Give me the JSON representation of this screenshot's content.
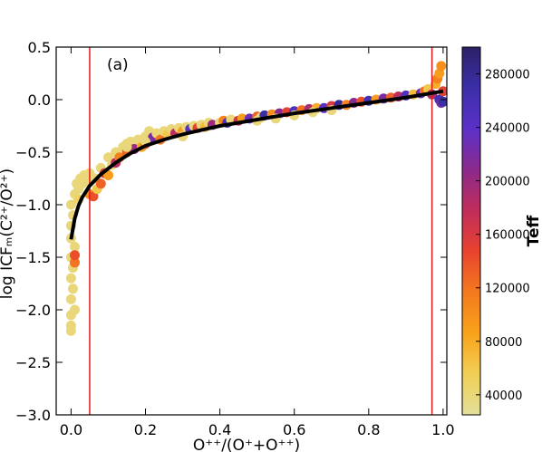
{
  "chart_data": {
    "type": "scatter",
    "panel_label": "(a)",
    "xlabel": "O⁺⁺/(O⁺+O⁺⁺)",
    "ylabel": "log ICFₘ(C²⁺/O²⁺)",
    "xlim": [
      -0.04,
      1.01
    ],
    "ylim": [
      -3.0,
      0.5
    ],
    "x_ticks": [
      "0.0",
      "0.2",
      "0.4",
      "0.6",
      "0.8",
      "1.0"
    ],
    "x_tick_values": [
      0.0,
      0.2,
      0.4,
      0.6,
      0.8,
      1.0
    ],
    "y_ticks": [
      "0.5",
      "0.0",
      "−0.5",
      "−1.0",
      "−1.5",
      "−2.0",
      "−2.5",
      "−3.0"
    ],
    "y_tick_values": [
      0.5,
      0.0,
      -0.5,
      -1.0,
      -1.5,
      -2.0,
      -2.5,
      -3.0
    ],
    "vertical_lines": [
      0.05,
      0.97
    ],
    "vline_color": "#e31a1c",
    "fit_curve": {
      "color": "#000000",
      "x": [
        0.0,
        0.01,
        0.02,
        0.03,
        0.05,
        0.08,
        0.12,
        0.16,
        0.2,
        0.25,
        0.3,
        0.35,
        0.4,
        0.5,
        0.6,
        0.7,
        0.8,
        0.9,
        1.0
      ],
      "y": [
        -1.33,
        -1.13,
        -1.01,
        -0.93,
        -0.82,
        -0.71,
        -0.6,
        -0.51,
        -0.44,
        -0.38,
        -0.33,
        -0.29,
        -0.25,
        -0.19,
        -0.13,
        -0.08,
        -0.03,
        0.02,
        0.08
      ]
    },
    "colorbar": {
      "label": "Teff",
      "min": 25000,
      "max": 300000,
      "ticks": [
        "280000",
        "240000",
        "200000",
        "160000",
        "120000",
        "80000",
        "40000"
      ],
      "tick_values": [
        280000,
        240000,
        200000,
        160000,
        120000,
        80000,
        40000
      ],
      "colormap": [
        "#e2df9a",
        "#f1cf56",
        "#f9a21a",
        "#f37a1f",
        "#e9432f",
        "#c12d5b",
        "#8b2a8c",
        "#5c30c8",
        "#3b2fa8",
        "#2c2068"
      ]
    },
    "points": [
      [
        0.0,
        -1.32,
        40000
      ],
      [
        0.0,
        -1.5,
        40000
      ],
      [
        0.0,
        -1.7,
        40000
      ],
      [
        0.0,
        -1.9,
        40000
      ],
      [
        0.0,
        -2.05,
        40000
      ],
      [
        0.0,
        -2.15,
        40000
      ],
      [
        0.0,
        -2.2,
        40000
      ],
      [
        0.0,
        -1.2,
        40000
      ],
      [
        0.0,
        -1.0,
        40000
      ],
      [
        0.005,
        -1.1,
        40000
      ],
      [
        0.005,
        -1.6,
        40000
      ],
      [
        0.005,
        -1.8,
        40000
      ],
      [
        0.01,
        -0.9,
        40000
      ],
      [
        0.01,
        -1.4,
        40000
      ],
      [
        0.01,
        -2.0,
        40000
      ],
      [
        0.01,
        -1.55,
        120000
      ],
      [
        0.01,
        -1.48,
        140000
      ],
      [
        0.015,
        -0.8,
        40000
      ],
      [
        0.02,
        -0.85,
        40000
      ],
      [
        0.02,
        -0.95,
        50000
      ],
      [
        0.025,
        -0.75,
        40000
      ],
      [
        0.03,
        -0.8,
        40000
      ],
      [
        0.035,
        -0.72,
        40000
      ],
      [
        0.04,
        -0.78,
        40000
      ],
      [
        0.05,
        -0.7,
        40000
      ],
      [
        0.05,
        -0.9,
        100000
      ],
      [
        0.06,
        -0.92,
        140000
      ],
      [
        0.065,
        -0.75,
        40000
      ],
      [
        0.07,
        -0.85,
        60000
      ],
      [
        0.08,
        -0.65,
        40000
      ],
      [
        0.08,
        -0.8,
        130000
      ],
      [
        0.09,
        -0.7,
        160000
      ],
      [
        0.1,
        -0.72,
        90000
      ],
      [
        0.1,
        -0.55,
        40000
      ],
      [
        0.11,
        -0.62,
        40000
      ],
      [
        0.12,
        -0.5,
        40000
      ],
      [
        0.12,
        -0.6,
        180000
      ],
      [
        0.13,
        -0.55,
        110000
      ],
      [
        0.14,
        -0.45,
        40000
      ],
      [
        0.15,
        -0.5,
        130000
      ],
      [
        0.15,
        -0.42,
        40000
      ],
      [
        0.16,
        -0.4,
        40000
      ],
      [
        0.17,
        -0.47,
        200000
      ],
      [
        0.18,
        -0.38,
        40000
      ],
      [
        0.19,
        -0.45,
        80000
      ],
      [
        0.2,
        -0.35,
        40000
      ],
      [
        0.2,
        -0.42,
        140000
      ],
      [
        0.21,
        -0.3,
        40000
      ],
      [
        0.22,
        -0.36,
        220000
      ],
      [
        0.23,
        -0.32,
        40000
      ],
      [
        0.24,
        -0.38,
        120000
      ],
      [
        0.25,
        -0.3,
        40000
      ],
      [
        0.26,
        -0.33,
        60000
      ],
      [
        0.27,
        -0.28,
        40000
      ],
      [
        0.28,
        -0.32,
        180000
      ],
      [
        0.29,
        -0.27,
        40000
      ],
      [
        0.3,
        -0.3,
        90000
      ],
      [
        0.31,
        -0.26,
        40000
      ],
      [
        0.32,
        -0.28,
        240000
      ],
      [
        0.33,
        -0.25,
        40000
      ],
      [
        0.34,
        -0.27,
        150000
      ],
      [
        0.35,
        -0.24,
        40000
      ],
      [
        0.36,
        -0.26,
        70000
      ],
      [
        0.37,
        -0.22,
        40000
      ],
      [
        0.38,
        -0.24,
        200000
      ],
      [
        0.4,
        -0.22,
        40000
      ],
      [
        0.41,
        -0.2,
        110000
      ],
      [
        0.42,
        -0.22,
        260000
      ],
      [
        0.43,
        -0.19,
        40000
      ],
      [
        0.45,
        -0.2,
        170000
      ],
      [
        0.46,
        -0.18,
        90000
      ],
      [
        0.48,
        -0.18,
        230000
      ],
      [
        0.5,
        -0.16,
        130000
      ],
      [
        0.51,
        -0.17,
        40000
      ],
      [
        0.52,
        -0.15,
        270000
      ],
      [
        0.54,
        -0.14,
        100000
      ],
      [
        0.56,
        -0.13,
        210000
      ],
      [
        0.58,
        -0.12,
        150000
      ],
      [
        0.6,
        -0.11,
        250000
      ],
      [
        0.62,
        -0.1,
        120000
      ],
      [
        0.64,
        -0.09,
        190000
      ],
      [
        0.66,
        -0.08,
        80000
      ],
      [
        0.68,
        -0.08,
        240000
      ],
      [
        0.7,
        -0.06,
        160000
      ],
      [
        0.72,
        -0.05,
        280000
      ],
      [
        0.74,
        -0.05,
        110000
      ],
      [
        0.76,
        -0.03,
        210000
      ],
      [
        0.78,
        -0.02,
        140000
      ],
      [
        0.8,
        -0.01,
        260000
      ],
      [
        0.82,
        0.0,
        90000
      ],
      [
        0.84,
        0.01,
        220000
      ],
      [
        0.86,
        0.02,
        130000
      ],
      [
        0.88,
        0.03,
        180000
      ],
      [
        0.9,
        0.04,
        250000
      ],
      [
        0.92,
        0.05,
        70000
      ],
      [
        0.94,
        0.06,
        230000
      ],
      [
        0.95,
        0.08,
        120000
      ],
      [
        0.96,
        0.1,
        60000
      ],
      [
        0.97,
        0.05,
        190000
      ],
      [
        0.98,
        0.15,
        80000
      ],
      [
        0.985,
        0.2,
        110000
      ],
      [
        0.99,
        0.25,
        90000
      ],
      [
        0.995,
        0.32,
        100000
      ],
      [
        0.99,
        0.0,
        260000
      ],
      [
        0.995,
        -0.03,
        220000
      ],
      [
        1.0,
        0.08,
        150000
      ],
      [
        1.0,
        -0.02,
        270000
      ],
      [
        0.5,
        -0.2,
        40000
      ],
      [
        0.55,
        -0.18,
        40000
      ],
      [
        0.6,
        -0.15,
        40000
      ],
      [
        0.65,
        -0.12,
        40000
      ],
      [
        0.7,
        -0.1,
        40000
      ],
      [
        0.3,
        -0.35,
        40000
      ],
      [
        0.2,
        -0.4,
        40000
      ],
      [
        0.15,
        -0.45,
        40000
      ]
    ]
  }
}
